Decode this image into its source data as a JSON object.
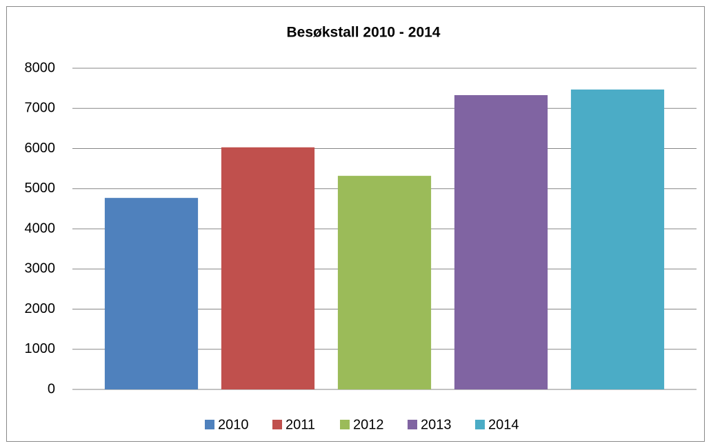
{
  "chart_data": {
    "type": "bar",
    "title": "Besøkstall 2010 - 2014",
    "categories": [
      null
    ],
    "series": [
      {
        "name": "2010",
        "color": "#4f81bd",
        "values": [
          4770
        ]
      },
      {
        "name": "2011",
        "color": "#c0504d",
        "values": [
          6030
        ]
      },
      {
        "name": "2012",
        "color": "#9bbb59",
        "values": [
          5320
        ]
      },
      {
        "name": "2013",
        "color": "#8064a2",
        "values": [
          7330
        ]
      },
      {
        "name": "2014",
        "color": "#4bacc6",
        "values": [
          7470
        ]
      }
    ],
    "ylim": [
      0,
      8000
    ],
    "yticks": [
      0,
      1000,
      2000,
      3000,
      4000,
      5000,
      6000,
      7000,
      8000
    ],
    "grid": true,
    "legend": "bottom"
  }
}
